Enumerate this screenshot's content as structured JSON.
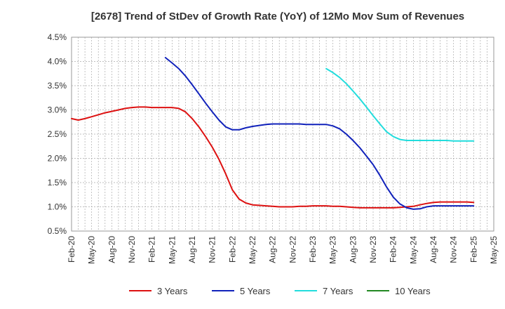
{
  "chart_data": {
    "type": "line",
    "title": "[2678]  Trend of StDev of Growth Rate (YoY) of 12Mo Mov Sum of Revenues",
    "xlabel": "",
    "ylabel": "",
    "ylim": [
      0.5,
      4.5
    ],
    "yticks": [
      "0.5%",
      "1.0%",
      "1.5%",
      "2.0%",
      "2.5%",
      "3.0%",
      "3.5%",
      "4.0%",
      "4.5%"
    ],
    "ytick_values": [
      0.5,
      1.0,
      1.5,
      2.0,
      2.5,
      3.0,
      3.5,
      4.0,
      4.5
    ],
    "xticks": [
      "Feb-20",
      "May-20",
      "Aug-20",
      "Nov-20",
      "Feb-21",
      "May-21",
      "Aug-21",
      "Nov-21",
      "Feb-22",
      "May-22",
      "Aug-22",
      "Nov-22",
      "Feb-23",
      "May-23",
      "Aug-23",
      "Nov-23",
      "Feb-24",
      "May-24",
      "Aug-24",
      "Nov-24",
      "Feb-25",
      "May-25"
    ],
    "x_start": "Feb-20",
    "x_unit": "months since Feb-20",
    "grid": true,
    "legend_position": "bottom",
    "series": [
      {
        "name": "3 Years",
        "color": "#dd1111",
        "x": [
          0,
          1,
          2,
          3,
          4,
          5,
          6,
          7,
          8,
          9,
          10,
          11,
          12,
          13,
          14,
          15,
          16,
          17,
          18,
          19,
          20,
          21,
          22,
          23,
          24,
          25,
          26,
          27,
          28,
          29,
          30,
          31,
          32,
          33,
          34,
          35,
          36,
          37,
          38,
          39,
          40,
          41,
          42,
          43,
          44,
          45,
          46,
          47,
          48,
          49,
          50,
          51,
          52,
          53,
          54,
          55,
          56,
          57,
          58,
          59,
          60
        ],
        "values": [
          2.82,
          2.79,
          2.82,
          2.86,
          2.9,
          2.94,
          2.97,
          3.0,
          3.03,
          3.05,
          3.06,
          3.06,
          3.05,
          3.05,
          3.05,
          3.05,
          3.03,
          2.96,
          2.82,
          2.65,
          2.45,
          2.23,
          1.98,
          1.68,
          1.35,
          1.16,
          1.08,
          1.04,
          1.03,
          1.02,
          1.01,
          1.0,
          1.0,
          1.0,
          1.01,
          1.01,
          1.02,
          1.02,
          1.02,
          1.01,
          1.01,
          1.0,
          0.99,
          0.98,
          0.98,
          0.98,
          0.98,
          0.98,
          0.98,
          0.99,
          1.0,
          1.01,
          1.04,
          1.07,
          1.09,
          1.1,
          1.1,
          1.1,
          1.1,
          1.1,
          1.09
        ]
      },
      {
        "name": "5 Years",
        "color": "#1122bb",
        "x": [
          14,
          15,
          16,
          17,
          18,
          19,
          20,
          21,
          22,
          23,
          24,
          25,
          26,
          27,
          28,
          29,
          30,
          31,
          32,
          33,
          34,
          35,
          36,
          37,
          38,
          39,
          40,
          41,
          42,
          43,
          44,
          45,
          46,
          47,
          48,
          49,
          50,
          51,
          52,
          53,
          54,
          55,
          56,
          57,
          58,
          59,
          60
        ],
        "values": [
          4.08,
          3.97,
          3.85,
          3.7,
          3.52,
          3.33,
          3.14,
          2.96,
          2.79,
          2.65,
          2.59,
          2.59,
          2.63,
          2.66,
          2.68,
          2.7,
          2.71,
          2.71,
          2.71,
          2.71,
          2.71,
          2.7,
          2.7,
          2.7,
          2.7,
          2.67,
          2.61,
          2.5,
          2.37,
          2.22,
          2.05,
          1.87,
          1.65,
          1.41,
          1.2,
          1.06,
          0.98,
          0.95,
          0.96,
          1.0,
          1.02,
          1.02,
          1.02,
          1.02,
          1.02,
          1.02,
          1.02
        ]
      },
      {
        "name": "7 Years",
        "color": "#22dddd",
        "x": [
          38,
          39,
          40,
          41,
          42,
          43,
          44,
          45,
          46,
          47,
          48,
          49,
          50,
          51,
          52,
          53,
          54,
          55,
          56,
          57,
          58,
          59,
          60
        ],
        "values": [
          3.85,
          3.77,
          3.67,
          3.54,
          3.39,
          3.23,
          3.06,
          2.88,
          2.71,
          2.55,
          2.45,
          2.39,
          2.37,
          2.37,
          2.37,
          2.37,
          2.37,
          2.37,
          2.37,
          2.36,
          2.36,
          2.36,
          2.36
        ]
      },
      {
        "name": "10 Years",
        "color": "#228822",
        "x": [],
        "values": []
      }
    ]
  }
}
